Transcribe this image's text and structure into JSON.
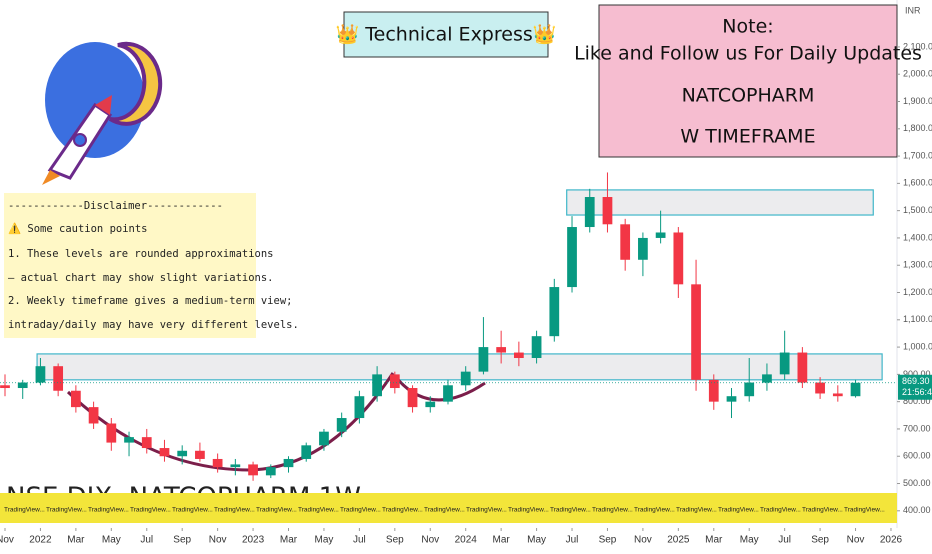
{
  "header": {
    "title": "👑 Technical Express👑"
  },
  "note": {
    "lines": [
      "Note:",
      "Like and Follow us For Daily Updates",
      "NATCOPHARM",
      "W TIMEFRAME"
    ]
  },
  "disclaimer": {
    "lines": [
      "------------Disclaimer------------",
      "⚠️ Some caution points",
      "1. These levels are rounded approximations",
      "– actual chart may show slight variations.",
      "2. Weekly timeframe gives a medium-term view;",
      "intraday/daily may have very different levels."
    ]
  },
  "news_label": "TradingView...",
  "chart_data": {
    "type": "candlestick",
    "watermark": "NSE·DIX· NATCOPHARM·1W",
    "currency": "INR",
    "up_color": "#089981",
    "down_color": "#f23645",
    "x": [
      0,
      1,
      2,
      3,
      4,
      5,
      6,
      7,
      8,
      9,
      10,
      11,
      12,
      13,
      14,
      15,
      16,
      17,
      18,
      19,
      20,
      21,
      22,
      23,
      24,
      25,
      26,
      27,
      28,
      29,
      30,
      31,
      32,
      33,
      34,
      35,
      36,
      37,
      38,
      39,
      40,
      41,
      42,
      43,
      44,
      45,
      46,
      47,
      48
    ],
    "open": [
      860,
      850,
      870,
      930,
      840,
      780,
      720,
      650,
      670,
      630,
      600,
      620,
      590,
      560,
      570,
      530,
      560,
      590,
      640,
      690,
      740,
      820,
      900,
      850,
      780,
      800,
      860,
      910,
      1000,
      980,
      960,
      1040,
      1220,
      1440,
      1550,
      1450,
      1320,
      1400,
      1420,
      1230,
      880,
      800,
      820,
      870,
      900,
      980,
      870,
      830,
      820
    ],
    "high": [
      900,
      880,
      960,
      940,
      860,
      800,
      740,
      690,
      700,
      660,
      640,
      650,
      610,
      590,
      580,
      570,
      600,
      650,
      700,
      760,
      840,
      930,
      910,
      860,
      820,
      880,
      930,
      1110,
      1060,
      1020,
      1060,
      1250,
      1480,
      1580,
      1640,
      1470,
      1420,
      1500,
      1440,
      1320,
      900,
      850,
      960,
      940,
      1060,
      1000,
      890,
      860,
      880
    ],
    "low": [
      820,
      810,
      860,
      820,
      760,
      700,
      620,
      600,
      610,
      580,
      570,
      580,
      540,
      530,
      510,
      520,
      540,
      580,
      620,
      670,
      720,
      800,
      830,
      760,
      760,
      790,
      840,
      900,
      940,
      930,
      940,
      1020,
      1200,
      1420,
      1420,
      1280,
      1260,
      1380,
      1180,
      840,
      770,
      740,
      800,
      840,
      880,
      850,
      810,
      800,
      815
    ],
    "close": [
      850,
      870,
      930,
      840,
      780,
      720,
      650,
      670,
      630,
      600,
      620,
      590,
      560,
      570,
      530,
      560,
      590,
      640,
      690,
      740,
      820,
      900,
      850,
      780,
      800,
      860,
      910,
      1000,
      980,
      960,
      1040,
      1220,
      1440,
      1550,
      1450,
      1320,
      1400,
      1420,
      1230,
      880,
      800,
      820,
      870,
      900,
      980,
      870,
      830,
      820,
      869.3
    ],
    "zones": [
      {
        "x": [
          1.81,
          49.5
        ],
        "y": [
          880,
          975
        ]
      },
      {
        "x": [
          31.7,
          49.0
        ],
        "y": [
          1484,
          1576
        ]
      }
    ],
    "last_price": {
      "value": 869.3,
      "label": "869.30"
    },
    "countdown": "21:56:41",
    "xlim": [
      -0.282,
      50.34
    ],
    "ylim": [
      337,
      2272
    ],
    "xticks": [
      {
        "value": 0,
        "label": "Nov"
      },
      {
        "value": 2,
        "label": "2022"
      },
      {
        "value": 4,
        "label": "Mar"
      },
      {
        "value": 6,
        "label": "May"
      },
      {
        "value": 8,
        "label": "Jul"
      },
      {
        "value": 10,
        "label": "Sep"
      },
      {
        "value": 12,
        "label": "Nov"
      },
      {
        "value": 14,
        "label": "2023"
      },
      {
        "value": 16,
        "label": "Mar"
      },
      {
        "value": 18,
        "label": "May"
      },
      {
        "value": 20,
        "label": "Jul"
      },
      {
        "value": 22,
        "label": "Sep"
      },
      {
        "value": 24,
        "label": "Nov"
      },
      {
        "value": 26,
        "label": "2024"
      },
      {
        "value": 28,
        "label": "Mar"
      },
      {
        "value": 30,
        "label": "May"
      },
      {
        "value": 32,
        "label": "Jul"
      },
      {
        "value": 34,
        "label": "Sep"
      },
      {
        "value": 36,
        "label": "Nov"
      },
      {
        "value": 38,
        "label": "2025"
      },
      {
        "value": 40,
        "label": "Mar"
      },
      {
        "value": 42,
        "label": "May"
      },
      {
        "value": 44,
        "label": "Jul"
      },
      {
        "value": 46,
        "label": "Sep"
      },
      {
        "value": 48,
        "label": "Nov"
      },
      {
        "value": 50,
        "label": "2026"
      }
    ],
    "yticks": [
      {
        "value": 400,
        "label": "400.00"
      },
      {
        "value": 500,
        "label": "500.00"
      },
      {
        "value": 600,
        "label": "600.00"
      },
      {
        "value": 700,
        "label": "700.00"
      },
      {
        "value": 800,
        "label": "800.00"
      },
      {
        "value": 900,
        "label": "900.00"
      },
      {
        "value": 1000,
        "label": "1,000.00"
      },
      {
        "value": 1100,
        "label": "1,100.00"
      },
      {
        "value": 1200,
        "label": "1,200.00"
      },
      {
        "value": 1300,
        "label": "1,300.00"
      },
      {
        "value": 1400,
        "label": "1,400.00"
      },
      {
        "value": 1500,
        "label": "1,500.00"
      },
      {
        "value": 1600,
        "label": "1,600.00"
      },
      {
        "value": 1700,
        "label": "1,700.00"
      },
      {
        "value": 1800,
        "label": "1,800.00"
      },
      {
        "value": 1900,
        "label": "1,900.00"
      },
      {
        "value": 2000,
        "label": "2,000.00"
      },
      {
        "value": 2100,
        "label": "2,100.00"
      }
    ]
  }
}
